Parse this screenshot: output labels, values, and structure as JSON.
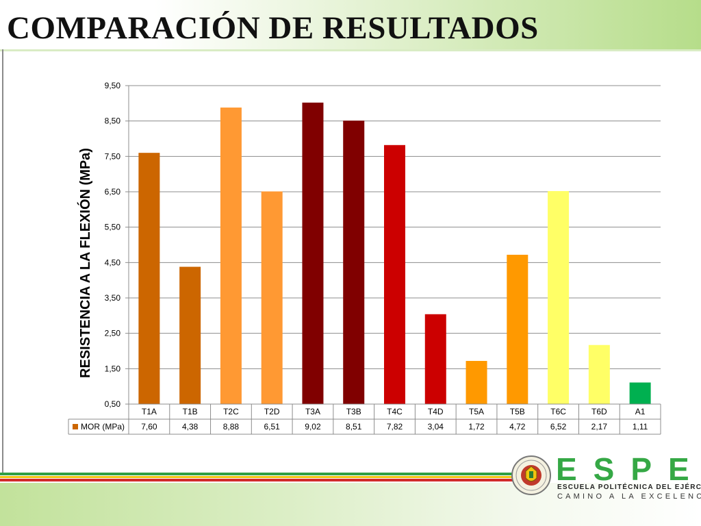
{
  "slide": {
    "title": "COMPARACIÓN DE RESULTADOS"
  },
  "brand": {
    "name": "ESPE",
    "line1": "ESCUELA POLITÉCNICA DEL EJÉRCITO",
    "line2": "CAMINO A LA EXCELENCIA",
    "colors": {
      "green": "#35a845",
      "yellow": "#f1c40f",
      "red": "#d12a2a"
    },
    "emblem_icon": "espe-emblem-icon"
  },
  "chart_data": {
    "type": "bar",
    "title": "",
    "xlabel": "",
    "ylabel": "RESISTENCIA A LA FLEXIÓN  (MPa)",
    "categories": [
      "T1A",
      "T1B",
      "T2C",
      "T2D",
      "T3A",
      "T3B",
      "T4C",
      "T4D",
      "T5A",
      "T5B",
      "T6C",
      "T6D",
      "A1"
    ],
    "series": [
      {
        "name": "MOR (MPa)",
        "values": [
          7.6,
          4.38,
          8.88,
          6.51,
          9.02,
          8.51,
          7.82,
          3.04,
          1.72,
          4.72,
          6.52,
          2.17,
          1.11
        ],
        "value_labels": [
          "7,60",
          "4,38",
          "8,88",
          "6,51",
          "9,02",
          "8,51",
          "7,82",
          "3,04",
          "1,72",
          "4,72",
          "6,52",
          "2,17",
          "1,11"
        ],
        "legend_color": "#cc6600",
        "colors": [
          "#cc6600",
          "#cc6600",
          "#ff9933",
          "#ff9933",
          "#800000",
          "#800000",
          "#cc0000",
          "#cc0000",
          "#ff9900",
          "#ff9900",
          "#ffff66",
          "#ffff66",
          "#00b050"
        ]
      }
    ],
    "ylim": [
      0.5,
      9.5
    ],
    "yticks": [
      0.5,
      1.5,
      2.5,
      3.5,
      4.5,
      5.5,
      6.5,
      7.5,
      8.5,
      9.5
    ],
    "ytick_labels": [
      "0,50",
      "1,50",
      "2,50",
      "3,50",
      "4,50",
      "5,50",
      "6,50",
      "7,50",
      "8,50",
      "9,50"
    ],
    "grid": true,
    "data_table": true
  }
}
